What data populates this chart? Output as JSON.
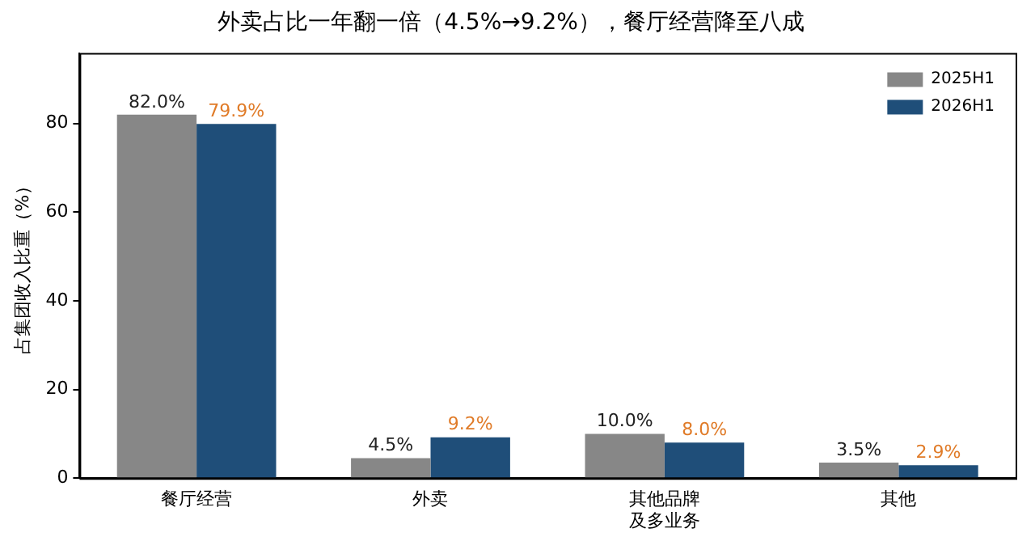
{
  "chart_data": {
    "type": "bar",
    "title": "外卖占比一年翻一倍（4.5%→9.2%），餐厅经营降至八成",
    "ylabel": "占集团收入比重（%）",
    "categories": [
      "餐厅经营",
      "外卖",
      "其他品牌及多业务",
      "其他"
    ],
    "series": [
      {
        "name": "2025H1",
        "color": "#878787",
        "values": [
          82.0,
          4.5,
          10.0,
          3.5
        ],
        "value_labels": [
          "82.0%",
          "4.5%",
          "10.0%",
          "3.5%"
        ]
      },
      {
        "name": "2026H1",
        "color": "#1f4e79",
        "values": [
          79.9,
          9.2,
          8.0,
          2.9
        ],
        "value_labels": [
          "79.9%",
          "9.2%",
          "8.0%",
          "2.9%"
        ]
      }
    ],
    "ylim": [
      0,
      95.9
    ],
    "yticks": [
      0,
      20,
      40,
      60,
      80
    ],
    "grid": false,
    "legend": "top right"
  }
}
